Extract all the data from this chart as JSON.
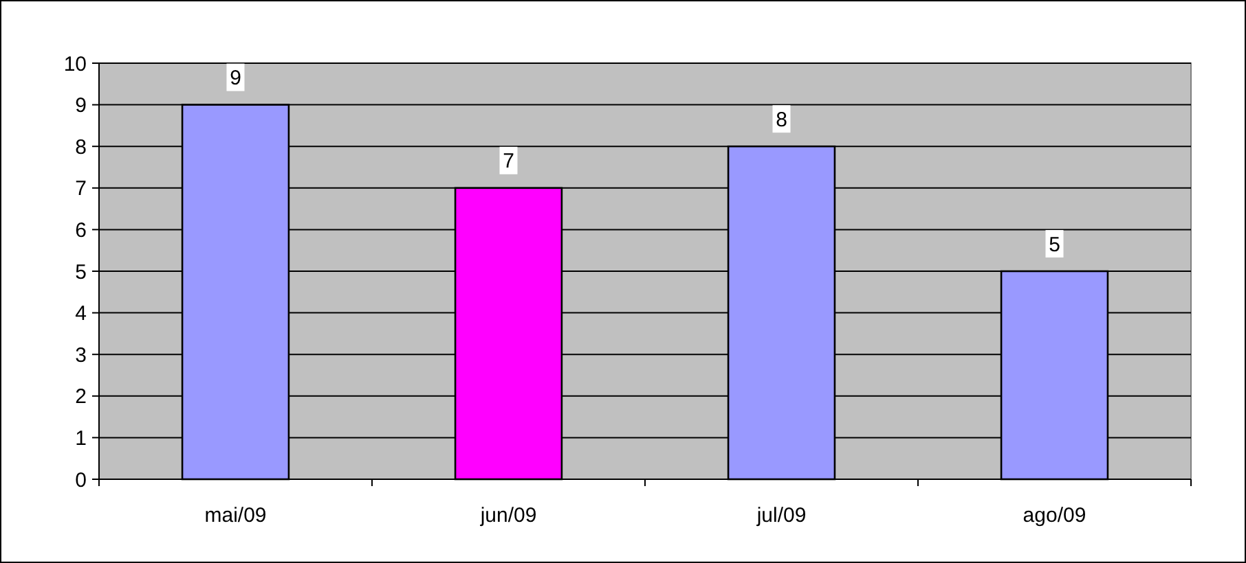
{
  "chart_data": {
    "type": "bar",
    "categories": [
      "mai/09",
      "jun/09",
      "jul/09",
      "ago/09"
    ],
    "values": [
      9,
      7,
      8,
      5
    ],
    "colors": [
      "#9999ff",
      "#ff00ff",
      "#9999ff",
      "#9999ff"
    ],
    "ylim": [
      0,
      10
    ],
    "yticks": [
      0,
      1,
      2,
      3,
      4,
      5,
      6,
      7,
      8,
      9,
      10
    ],
    "grid": "y",
    "data_labels": true
  }
}
